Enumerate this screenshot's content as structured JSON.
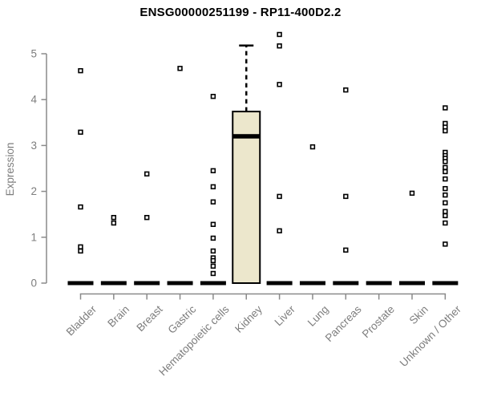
{
  "chart_data": {
    "type": "boxplot",
    "title": "ENSG00000251199 - RP11-400D2.2",
    "ylabel": "Expression",
    "xlabel": "",
    "ylim": [
      0,
      5.5
    ],
    "yticks": [
      0,
      1,
      2,
      3,
      4,
      5
    ],
    "grid": false,
    "legend": false,
    "colors": {
      "box_fill": "#ECE7CC",
      "box_stroke": "#000000",
      "median": "#000000",
      "outlier_stroke": "#000000",
      "outlier_fill": "#ffffff",
      "axis": "#8a8a8a",
      "tick_label": "#7d7d7d",
      "title": "#000000"
    },
    "categories": [
      "Bladder",
      "Brain",
      "Breast",
      "Gastric",
      "Hematopoietic cells",
      "Kidney",
      "Liver",
      "Lung",
      "Pancreas",
      "Prostate",
      "Skin",
      "Unknown / Other"
    ],
    "series": [
      {
        "category": "Bladder",
        "stats": {
          "q1": 0,
          "median": 0,
          "q3": 0,
          "whisker_low": 0,
          "whisker_high": 0
        },
        "outliers": [
          4.63,
          3.29,
          1.66,
          0.79,
          0.7
        ]
      },
      {
        "category": "Brain",
        "stats": {
          "q1": 0,
          "median": 0,
          "q3": 0,
          "whisker_low": 0,
          "whisker_high": 0
        },
        "outliers": [
          1.43,
          1.31
        ]
      },
      {
        "category": "Breast",
        "stats": {
          "q1": 0,
          "median": 0,
          "q3": 0,
          "whisker_low": 0,
          "whisker_high": 0
        },
        "outliers": [
          2.38,
          1.43
        ]
      },
      {
        "category": "Gastric",
        "stats": {
          "q1": 0,
          "median": 0,
          "q3": 0,
          "whisker_low": 0,
          "whisker_high": 0
        },
        "outliers": [
          4.68
        ]
      },
      {
        "category": "Hematopoietic cells",
        "stats": {
          "q1": 0,
          "median": 0,
          "q3": 0,
          "whisker_low": 0,
          "whisker_high": 0
        },
        "outliers": [
          4.07,
          2.45,
          2.1,
          1.77,
          1.28,
          0.98,
          0.7,
          0.55,
          0.49,
          0.37,
          0.21
        ]
      },
      {
        "category": "Kidney",
        "stats": {
          "q1": 0,
          "median": 3.2,
          "q3": 3.74,
          "whisker_low": 0,
          "whisker_high": 5.18
        },
        "outliers": []
      },
      {
        "category": "Liver",
        "stats": {
          "q1": 0,
          "median": 0,
          "q3": 0,
          "whisker_low": 0,
          "whisker_high": 0
        },
        "outliers": [
          5.42,
          5.17,
          4.33,
          1.89,
          1.14
        ]
      },
      {
        "category": "Lung",
        "stats": {
          "q1": 0,
          "median": 0,
          "q3": 0,
          "whisker_low": 0,
          "whisker_high": 0
        },
        "outliers": [
          2.97
        ]
      },
      {
        "category": "Pancreas",
        "stats": {
          "q1": 0,
          "median": 0,
          "q3": 0,
          "whisker_low": 0,
          "whisker_high": 0
        },
        "outliers": [
          4.21,
          1.89,
          0.72
        ]
      },
      {
        "category": "Prostate",
        "stats": {
          "q1": 0,
          "median": 0,
          "q3": 0,
          "whisker_low": 0,
          "whisker_high": 0
        },
        "outliers": []
      },
      {
        "category": "Skin",
        "stats": {
          "q1": 0,
          "median": 0,
          "q3": 0,
          "whisker_low": 0,
          "whisker_high": 0
        },
        "outliers": [
          1.96
        ]
      },
      {
        "category": "Unknown / Other",
        "stats": {
          "q1": 0,
          "median": 0,
          "q3": 0,
          "whisker_low": 0,
          "whisker_high": 0
        },
        "outliers": [
          3.82,
          3.48,
          3.4,
          3.32,
          2.85,
          2.78,
          2.72,
          2.65,
          2.52,
          2.43,
          2.27,
          2.06,
          1.92,
          1.75,
          1.56,
          1.47,
          1.31,
          0.85
        ]
      }
    ]
  }
}
